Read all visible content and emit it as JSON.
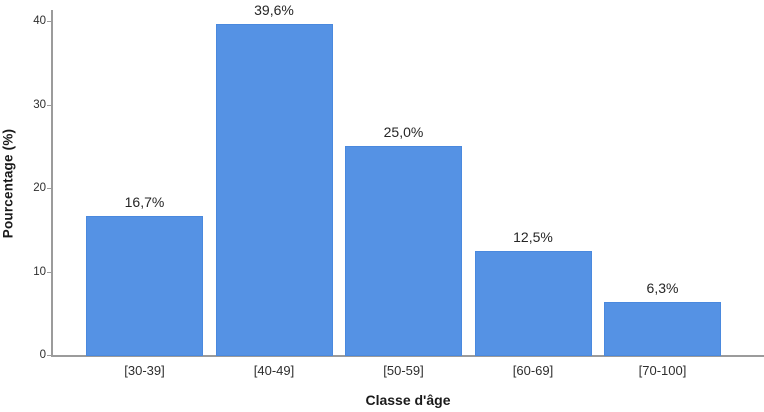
{
  "chart_data": {
    "type": "bar",
    "categories": [
      "[30-39]",
      "[40-49]",
      "[50-59]",
      "[60-69]",
      "[70-100]"
    ],
    "values": [
      16.7,
      39.6,
      25.0,
      12.5,
      6.3
    ],
    "value_labels": [
      "16,7%",
      "39,6%",
      "25,0%",
      "12,5%",
      "6,3%"
    ],
    "title": "",
    "xlabel": "Classe d'âge",
    "ylabel": "Pourcentage (%)",
    "ylim": [
      0,
      40
    ],
    "yticks": [
      0,
      10,
      20,
      30,
      40
    ],
    "grid": false,
    "legend": "none",
    "bar_color": "#5592e4",
    "bar_border_color": "#4a89de",
    "axis_color": "#9b9b9b",
    "text_color": "#262626",
    "background_color": "#ffffff"
  }
}
